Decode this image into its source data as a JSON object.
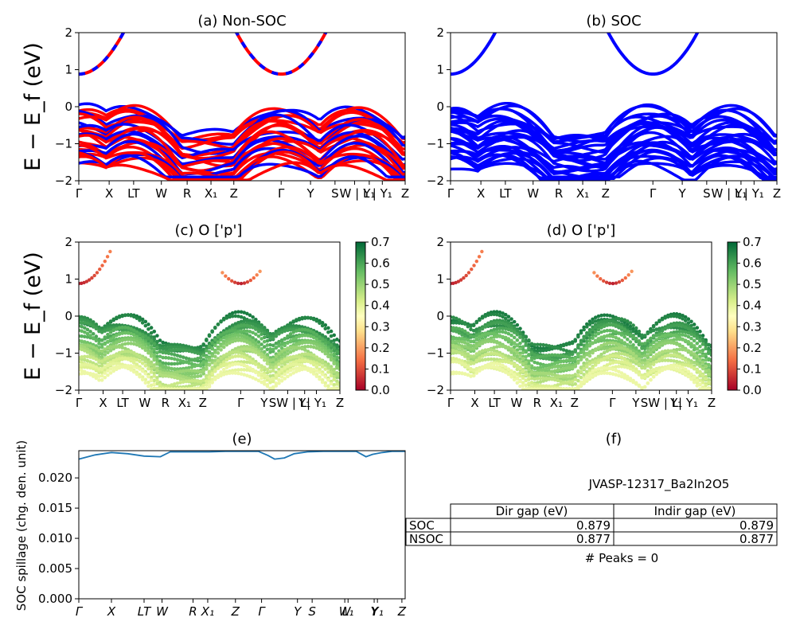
{
  "chart_data": [
    {
      "id": "a",
      "type": "line",
      "title": "(a) Non-SOC",
      "ylabel": "E − E_f (eV)",
      "ylim": [
        -2,
        2
      ],
      "yticks": [
        -2,
        -1,
        0,
        1,
        2
      ],
      "xticklabels": [
        "Γ",
        "X",
        "LT",
        "W",
        "R",
        "X₁",
        "Z",
        "Γ",
        "Y",
        "S",
        "W | L",
        "Y₁",
        "| Y₁",
        "Z"
      ],
      "series_colors": [
        "#ff0000",
        "#0000ff"
      ],
      "notes": "bands: conduction minimum ~0.88 eV at Γ; valence maxima ~0 eV at Γ, between L and T and near Y₁"
    },
    {
      "id": "b",
      "type": "line",
      "title": "(b) SOC",
      "ylim": [
        -2,
        2
      ],
      "yticks": [
        -2,
        -1,
        0,
        1,
        2
      ],
      "xticklabels": [
        "Γ",
        "X",
        "LT",
        "W",
        "R",
        "X₁",
        "Z",
        "Γ",
        "Y",
        "S",
        "W | L",
        "Y₁",
        "| Y₁",
        "Z"
      ],
      "series_colors": [
        "#0000ff"
      ]
    },
    {
      "id": "c",
      "type": "scatter",
      "title": "(c)  O ['p']",
      "ylabel": "E − E_f (eV)",
      "ylim": [
        -2,
        2
      ],
      "yticks": [
        -2,
        -1,
        0,
        1,
        2
      ],
      "xticklabels": [
        "Γ",
        "X",
        "LT",
        "W",
        "R",
        "X₁",
        "Z",
        "Γ",
        "Y",
        "SW | L",
        "Y₁",
        "| Y₁",
        "Z"
      ],
      "colorbar": {
        "colormap": "RdYlGn",
        "range": [
          0.0,
          0.7
        ],
        "ticks": [
          "0.0",
          "0.1",
          "0.2",
          "0.3",
          "0.4",
          "0.5",
          "0.6",
          "0.7"
        ]
      }
    },
    {
      "id": "d",
      "type": "scatter",
      "title": "(d) O ['p']",
      "ylim": [
        -2,
        2
      ],
      "yticks": [
        -2,
        -1,
        0,
        1,
        2
      ],
      "xticklabels": [
        "Γ",
        "X",
        "LT",
        "W",
        "R",
        "X₁",
        "Z",
        "Γ",
        "Y",
        "SW | L",
        "Y₁",
        "| Y₁",
        "Z"
      ],
      "colorbar": {
        "colormap": "RdYlGn",
        "range": [
          0.0,
          0.7
        ],
        "ticks": [
          "0.0",
          "0.1",
          "0.2",
          "0.3",
          "0.4",
          "0.5",
          "0.6",
          "0.7"
        ]
      }
    },
    {
      "id": "e",
      "type": "line",
      "title": "(e)",
      "ylabel": "SOC spillage (chg. den. unit)",
      "ylim": [
        0,
        0.0245
      ],
      "yticks": [
        "0.000",
        "0.005",
        "0.010",
        "0.015",
        "0.020"
      ],
      "xticklabels": [
        "Γ",
        "X",
        "LT",
        "W",
        "R",
        "X₁",
        "Z",
        "Γ",
        "Y",
        "S",
        "W",
        "L₁",
        "Y",
        "Y₁",
        "Z"
      ],
      "series_color": "#1f77b4",
      "x": [
        0,
        0.05,
        0.1,
        0.15,
        0.2,
        0.25,
        0.28,
        0.3,
        0.35,
        0.4,
        0.45,
        0.5,
        0.55,
        0.58,
        0.6,
        0.63,
        0.66,
        0.7,
        0.75,
        0.8,
        0.85,
        0.88,
        0.9,
        0.93,
        0.96,
        1.0
      ],
      "y": [
        0.0231,
        0.0238,
        0.0242,
        0.024,
        0.0236,
        0.0235,
        0.0243,
        0.0243,
        0.0243,
        0.0243,
        0.0244,
        0.0244,
        0.0244,
        0.0237,
        0.0231,
        0.0233,
        0.024,
        0.0243,
        0.0244,
        0.0244,
        0.0244,
        0.0235,
        0.0239,
        0.0242,
        0.0244,
        0.0244
      ]
    },
    {
      "id": "f",
      "type": "table",
      "title": "(f)",
      "material": "JVASP-12317_Ba2In2O5",
      "columns": [
        "Dir gap (eV)",
        "Indir gap (eV)"
      ],
      "rows": [
        {
          "label": "SOC",
          "dir": "0.879",
          "indir": "0.879"
        },
        {
          "label": "NSOC",
          "dir": "0.877",
          "indir": "0.877"
        }
      ],
      "peaks_text": "# Peaks = 0"
    }
  ]
}
